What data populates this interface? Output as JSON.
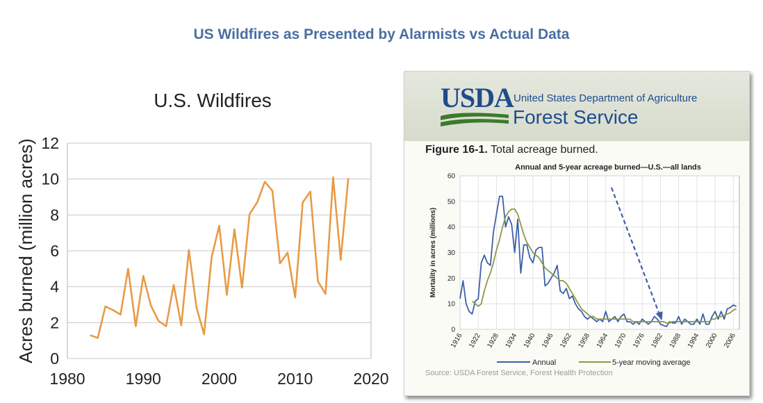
{
  "page_title": "US Wildfires as Presented by Alarmists vs Actual Data",
  "colors": {
    "title": "#4a6ea1",
    "left_line": "#e89a45",
    "annual": "#3d5fa6",
    "moving_avg": "#8a9a45",
    "arrow": "#3d5fa6",
    "usda_blue": "#1f4b8e",
    "usda_green": "#3c7a2d"
  },
  "right_panel": {
    "logo_text": "USDA",
    "dept_name": "United States Department of Agriculture",
    "agency_name": "Forest Service",
    "figure_label": "Figure 16-1.",
    "figure_desc": "Total acreage burned.",
    "source": "Source: USDA Forest Service, Forest Health Protection",
    "logo_icon": "usda-hills-logo"
  },
  "chart_data": [
    {
      "type": "line",
      "title": "U.S. Wildfires",
      "xlabel": "",
      "ylabel": "Acres burned (million acres)",
      "xlim": [
        1980,
        2020
      ],
      "ylim": [
        0,
        12
      ],
      "x_ticks": [
        1980,
        1990,
        2000,
        2010,
        2020
      ],
      "y_ticks": [
        0,
        2,
        4,
        6,
        8,
        10,
        12
      ],
      "grid": "horizontal",
      "series": [
        {
          "x": [
            1983,
            1984,
            1985,
            1986,
            1987,
            1988,
            1989,
            1990,
            1991,
            1992,
            1993,
            1994,
            1995,
            1996,
            1997,
            1998,
            1999,
            2000,
            2001,
            2002,
            2003,
            2004,
            2005,
            2006,
            2007,
            2008,
            2009,
            2010,
            2011,
            2012,
            2013,
            2014,
            2015,
            2016,
            2017
          ],
          "y": [
            1.3,
            1.15,
            2.9,
            2.7,
            2.45,
            5.0,
            1.8,
            4.6,
            2.95,
            2.1,
            1.8,
            4.1,
            1.85,
            6.05,
            2.85,
            1.35,
            5.65,
            7.4,
            3.55,
            7.2,
            3.95,
            8.05,
            8.7,
            9.85,
            9.35,
            5.3,
            5.9,
            3.4,
            8.7,
            9.3,
            4.3,
            3.6,
            10.1,
            5.5,
            10.05
          ]
        }
      ]
    },
    {
      "type": "line",
      "title": "Annual and 5-year acreage burned—U.S.—all lands",
      "xlabel": "",
      "ylabel": "Mortality in acres (millions)",
      "xlim": [
        1916,
        2008
      ],
      "ylim": [
        0,
        60
      ],
      "x_ticks": [
        1916,
        1922,
        1928,
        1934,
        1940,
        1946,
        1952,
        1958,
        1964,
        1970,
        1976,
        1982,
        1988,
        1994,
        2000,
        2006
      ],
      "y_ticks": [
        0,
        10,
        20,
        30,
        40,
        50,
        60
      ],
      "grid": "both",
      "legend": "bottom",
      "annotations": [
        "dashed arrow pointing down to early-1980s low"
      ],
      "series": [
        {
          "name": "Annual",
          "x": [
            1916,
            1917,
            1918,
            1919,
            1920,
            1921,
            1922,
            1923,
            1924,
            1925,
            1926,
            1927,
            1928,
            1929,
            1930,
            1931,
            1932,
            1933,
            1934,
            1935,
            1936,
            1937,
            1938,
            1939,
            1940,
            1941,
            1942,
            1943,
            1944,
            1945,
            1946,
            1947,
            1948,
            1949,
            1950,
            1951,
            1952,
            1953,
            1954,
            1955,
            1956,
            1957,
            1958,
            1959,
            1960,
            1961,
            1962,
            1963,
            1964,
            1965,
            1966,
            1967,
            1968,
            1969,
            1970,
            1971,
            1972,
            1973,
            1974,
            1975,
            1976,
            1977,
            1978,
            1979,
            1980,
            1981,
            1982,
            1983,
            1984,
            1985,
            1986,
            1987,
            1988,
            1989,
            1990,
            1991,
            1992,
            1993,
            1994,
            1995,
            1996,
            1997,
            1998,
            1999,
            2000,
            2001,
            2002,
            2003,
            2004,
            2005,
            2006,
            2007
          ],
          "y": [
            12,
            19,
            10,
            7,
            6,
            11,
            12,
            26,
            29,
            26,
            25,
            38,
            45,
            52,
            52,
            40,
            44,
            41,
            30,
            43,
            22,
            33,
            33,
            28,
            26,
            31,
            32,
            32,
            17,
            18,
            20,
            22,
            25,
            15,
            14,
            16,
            12,
            13,
            10,
            8,
            7,
            5,
            4,
            5,
            4,
            3,
            4,
            3,
            7,
            3,
            4,
            5,
            3,
            5,
            6,
            3,
            3,
            2,
            3,
            2,
            4,
            3,
            2,
            3,
            5,
            4,
            2,
            1.5,
            1.1,
            3,
            2.5,
            2.5,
            5,
            2,
            4,
            3,
            2,
            2,
            4,
            2,
            6,
            2,
            2,
            5,
            7,
            4,
            7,
            4,
            8,
            8.5,
            9.5,
            9
          ]
        },
        {
          "name": "5-year moving average",
          "x": [
            1920,
            1921,
            1922,
            1923,
            1924,
            1925,
            1926,
            1927,
            1928,
            1929,
            1930,
            1931,
            1932,
            1933,
            1934,
            1935,
            1936,
            1937,
            1938,
            1939,
            1940,
            1941,
            1942,
            1943,
            1944,
            1945,
            1946,
            1947,
            1948,
            1949,
            1950,
            1951,
            1952,
            1953,
            1954,
            1955,
            1956,
            1957,
            1958,
            1959,
            1960,
            1961,
            1962,
            1963,
            1964,
            1965,
            1966,
            1967,
            1968,
            1969,
            1970,
            1971,
            1972,
            1973,
            1974,
            1975,
            1976,
            1977,
            1978,
            1979,
            1980,
            1981,
            1982,
            1983,
            1984,
            1985,
            1986,
            1987,
            1988,
            1989,
            1990,
            1991,
            1992,
            1993,
            1994,
            1995,
            1996,
            1997,
            1998,
            1999,
            2000,
            2001,
            2002,
            2003,
            2004,
            2005,
            2006,
            2007
          ],
          "y": [
            11,
            10,
            9,
            10,
            15,
            19,
            22,
            26,
            31,
            35,
            40,
            44,
            46,
            47,
            47,
            45,
            41,
            37,
            34,
            32,
            30,
            29,
            28,
            26,
            24,
            23,
            22,
            21,
            20,
            19,
            19,
            18,
            16,
            14,
            12,
            10,
            8,
            7,
            6,
            5,
            5,
            4,
            4,
            4,
            4,
            4,
            4,
            4,
            4,
            4,
            4,
            4,
            4,
            3,
            3,
            3,
            3,
            3,
            3,
            3,
            3,
            3,
            3,
            3,
            2.5,
            2.5,
            3,
            3,
            3,
            3,
            3,
            3,
            3,
            3,
            3,
            3,
            3,
            3,
            3,
            4,
            4,
            5,
            5,
            5.5,
            6,
            6.5,
            7.5,
            8
          ]
        }
      ]
    }
  ]
}
